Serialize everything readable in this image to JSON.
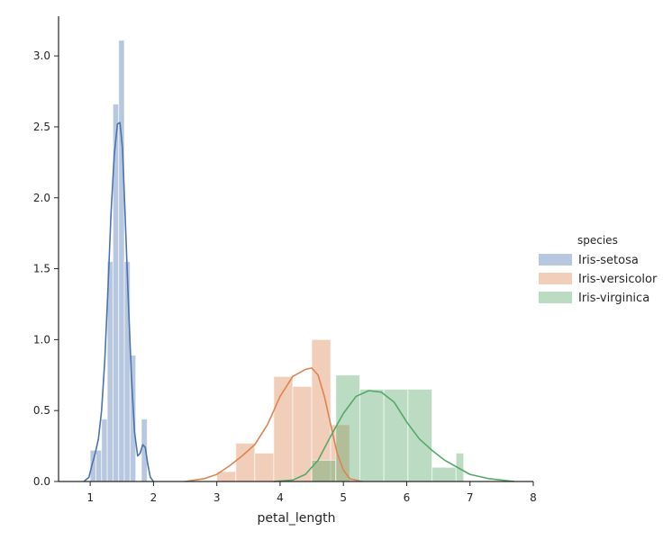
{
  "chart_data": {
    "type": "histogram_kde",
    "xlabel": "petal_length",
    "ylabel": "",
    "xlim": [
      0.5,
      8.0
    ],
    "ylim": [
      0.0,
      3.28
    ],
    "x_ticks": [
      "1",
      "2",
      "3",
      "4",
      "5",
      "6",
      "7",
      "8"
    ],
    "y_ticks": [
      "0.0",
      "0.5",
      "1.0",
      "1.5",
      "2.0",
      "2.5",
      "3.0"
    ],
    "grid": false,
    "legend": {
      "title": "species",
      "placement": "right"
    },
    "series": [
      {
        "name": "Iris-setosa",
        "color": "#4c72b0",
        "bins": [
          {
            "x0": 1.0,
            "x1": 1.09,
            "density": 0.22
          },
          {
            "x0": 1.09,
            "x1": 1.18,
            "density": 0.22
          },
          {
            "x0": 1.18,
            "x1": 1.27,
            "density": 0.44
          },
          {
            "x0": 1.27,
            "x1": 1.36,
            "density": 1.55
          },
          {
            "x0": 1.36,
            "x1": 1.45,
            "density": 2.66
          },
          {
            "x0": 1.45,
            "x1": 1.54,
            "density": 3.11
          },
          {
            "x0": 1.54,
            "x1": 1.63,
            "density": 1.55
          },
          {
            "x0": 1.63,
            "x1": 1.72,
            "density": 0.89
          },
          {
            "x0": 1.72,
            "x1": 1.81,
            "density": 0.0
          },
          {
            "x0": 1.81,
            "x1": 1.9,
            "density": 0.44
          }
        ],
        "kde": [
          [
            0.9,
            0.0
          ],
          [
            0.98,
            0.03
          ],
          [
            1.03,
            0.12
          ],
          [
            1.08,
            0.2
          ],
          [
            1.13,
            0.3
          ],
          [
            1.18,
            0.5
          ],
          [
            1.23,
            0.85
          ],
          [
            1.28,
            1.35
          ],
          [
            1.33,
            1.9
          ],
          [
            1.38,
            2.3
          ],
          [
            1.43,
            2.52
          ],
          [
            1.47,
            2.53
          ],
          [
            1.51,
            2.35
          ],
          [
            1.55,
            1.9
          ],
          [
            1.6,
            1.3
          ],
          [
            1.65,
            0.75
          ],
          [
            1.7,
            0.35
          ],
          [
            1.75,
            0.18
          ],
          [
            1.79,
            0.2
          ],
          [
            1.83,
            0.26
          ],
          [
            1.87,
            0.24
          ],
          [
            1.91,
            0.12
          ],
          [
            1.95,
            0.03
          ],
          [
            2.0,
            0.0
          ]
        ]
      },
      {
        "name": "Iris-versicolor",
        "color": "#dd8452",
        "bins": [
          {
            "x0": 3.0,
            "x1": 3.3,
            "density": 0.07
          },
          {
            "x0": 3.3,
            "x1": 3.6,
            "density": 0.27
          },
          {
            "x0": 3.6,
            "x1": 3.9,
            "density": 0.2
          },
          {
            "x0": 3.9,
            "x1": 4.2,
            "density": 0.74
          },
          {
            "x0": 4.2,
            "x1": 4.5,
            "density": 0.67
          },
          {
            "x0": 4.5,
            "x1": 4.8,
            "density": 1.0
          },
          {
            "x0": 4.8,
            "x1": 5.1,
            "density": 0.4
          }
        ],
        "kde": [
          [
            2.5,
            0.0
          ],
          [
            2.8,
            0.02
          ],
          [
            3.0,
            0.05
          ],
          [
            3.2,
            0.11
          ],
          [
            3.4,
            0.18
          ],
          [
            3.6,
            0.26
          ],
          [
            3.8,
            0.4
          ],
          [
            4.0,
            0.6
          ],
          [
            4.2,
            0.74
          ],
          [
            4.4,
            0.79
          ],
          [
            4.5,
            0.8
          ],
          [
            4.6,
            0.75
          ],
          [
            4.7,
            0.6
          ],
          [
            4.8,
            0.4
          ],
          [
            4.9,
            0.2
          ],
          [
            5.0,
            0.08
          ],
          [
            5.1,
            0.02
          ],
          [
            5.3,
            0.0
          ]
        ]
      },
      {
        "name": "Iris-virginica",
        "color": "#55a868",
        "bins": [
          {
            "x0": 4.5,
            "x1": 4.88,
            "density": 0.15
          },
          {
            "x0": 4.88,
            "x1": 5.26,
            "density": 0.75
          },
          {
            "x0": 5.26,
            "x1": 5.64,
            "density": 0.65
          },
          {
            "x0": 5.64,
            "x1": 6.02,
            "density": 0.65
          },
          {
            "x0": 6.02,
            "x1": 6.4,
            "density": 0.65
          },
          {
            "x0": 6.4,
            "x1": 6.78,
            "density": 0.1
          },
          {
            "x0": 6.78,
            "x1": 6.9,
            "density": 0.2
          }
        ],
        "kde": [
          [
            3.9,
            0.0
          ],
          [
            4.2,
            0.01
          ],
          [
            4.4,
            0.05
          ],
          [
            4.6,
            0.15
          ],
          [
            4.8,
            0.32
          ],
          [
            5.0,
            0.48
          ],
          [
            5.2,
            0.6
          ],
          [
            5.4,
            0.64
          ],
          [
            5.6,
            0.63
          ],
          [
            5.8,
            0.56
          ],
          [
            6.0,
            0.42
          ],
          [
            6.2,
            0.3
          ],
          [
            6.4,
            0.22
          ],
          [
            6.6,
            0.15
          ],
          [
            6.8,
            0.1
          ],
          [
            7.0,
            0.05
          ],
          [
            7.3,
            0.02
          ],
          [
            7.7,
            0.0
          ]
        ]
      }
    ]
  }
}
